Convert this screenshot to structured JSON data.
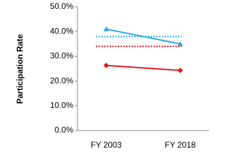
{
  "chart_data": {
    "type": "line",
    "y_label": "Participation Rate",
    "categories": [
      "FY 2003",
      "FY 2018"
    ],
    "series": [
      {
        "color": "#2aa8e0",
        "values": [
          41.0,
          35.0
        ],
        "marker": "triangle"
      },
      {
        "color": "#e8141b",
        "values": [
          26.3,
          24.3
        ],
        "marker": "diamond"
      },
      {
        "color": "#2aa8e0",
        "values": [
          38.0,
          38.0
        ],
        "dash": "dotted"
      },
      {
        "color": "#e8141b",
        "values": [
          34.0,
          34.0
        ],
        "dash": "dotted"
      }
    ],
    "ylim": [
      0,
      50
    ],
    "yticks": [
      {
        "value": 0,
        "label": "0.0%"
      },
      {
        "value": 10,
        "label": "10.0%"
      },
      {
        "value": 20,
        "label": "20.0%"
      },
      {
        "value": 30,
        "label": "30.0%"
      },
      {
        "value": 40,
        "label": "40.0%"
      },
      {
        "value": 50,
        "label": "50.0%"
      }
    ],
    "grid": false
  }
}
